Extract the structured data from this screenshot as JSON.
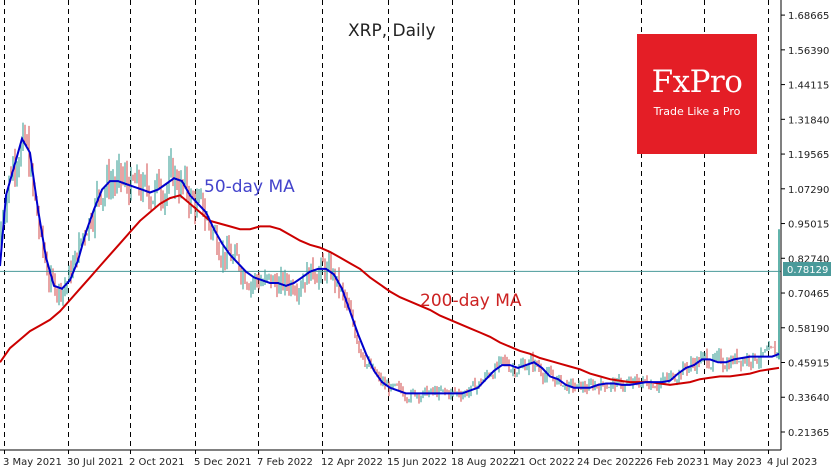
{
  "chart_data": {
    "type": "line",
    "title": "XRP, Daily",
    "x_tick_labels": [
      "3 May 2021",
      "30 Jul 2021",
      "2 Oct 2021",
      "5 Dec 2021",
      "7 Feb 2022",
      "12 Apr 2022",
      "15 Jun 2022",
      "18 Aug 2022",
      "21 Oct 2022",
      "24 Dec 2022",
      "26 Feb 2023",
      "1 May 2023",
      "4 Jul 2023"
    ],
    "y_ticks": [
      0.21365,
      0.3364,
      0.45915,
      0.5819,
      0.70465,
      0.8274,
      0.95015,
      1.0729,
      1.19565,
      1.3184,
      1.44115,
      1.5639,
      1.68665
    ],
    "y_tick_labels": [
      "0.21365",
      "0.33640",
      "0.45915",
      "0.58190",
      "0.70465",
      "0.82740",
      "0.95015",
      "1.07290",
      "1.19565",
      "1.31840",
      "1.44115",
      "1.56390",
      "1.68665"
    ],
    "ylim": [
      0.15,
      1.74
    ],
    "current_price": 0.78129,
    "current_price_label": "0.78129",
    "grid": "vertical dashed",
    "series": [
      {
        "name": "50-day MA",
        "color": "#0000cc",
        "points": [
          [
            0,
            0.8
          ],
          [
            6,
            1.05
          ],
          [
            14,
            1.15
          ],
          [
            22,
            1.25
          ],
          [
            30,
            1.2
          ],
          [
            38,
            1.0
          ],
          [
            46,
            0.83
          ],
          [
            54,
            0.73
          ],
          [
            62,
            0.72
          ],
          [
            70,
            0.75
          ],
          [
            78,
            0.82
          ],
          [
            86,
            0.92
          ],
          [
            94,
            1.0
          ],
          [
            102,
            1.07
          ],
          [
            110,
            1.1
          ],
          [
            118,
            1.1
          ],
          [
            126,
            1.09
          ],
          [
            134,
            1.08
          ],
          [
            142,
            1.07
          ],
          [
            150,
            1.06
          ],
          [
            158,
            1.07
          ],
          [
            166,
            1.09
          ],
          [
            174,
            1.11
          ],
          [
            182,
            1.1
          ],
          [
            190,
            1.05
          ],
          [
            198,
            1.02
          ],
          [
            206,
            0.99
          ],
          [
            214,
            0.93
          ],
          [
            222,
            0.88
          ],
          [
            230,
            0.84
          ],
          [
            238,
            0.81
          ],
          [
            246,
            0.78
          ],
          [
            254,
            0.76
          ],
          [
            262,
            0.75
          ],
          [
            270,
            0.74
          ],
          [
            278,
            0.74
          ],
          [
            286,
            0.73
          ],
          [
            294,
            0.74
          ],
          [
            302,
            0.76
          ],
          [
            310,
            0.78
          ],
          [
            318,
            0.79
          ],
          [
            326,
            0.79
          ],
          [
            334,
            0.77
          ],
          [
            342,
            0.72
          ],
          [
            350,
            0.64
          ],
          [
            358,
            0.56
          ],
          [
            366,
            0.49
          ],
          [
            374,
            0.43
          ],
          [
            382,
            0.39
          ],
          [
            390,
            0.37
          ],
          [
            398,
            0.36
          ],
          [
            406,
            0.35
          ],
          [
            414,
            0.35
          ],
          [
            422,
            0.35
          ],
          [
            430,
            0.35
          ],
          [
            438,
            0.35
          ],
          [
            446,
            0.35
          ],
          [
            454,
            0.35
          ],
          [
            462,
            0.35
          ],
          [
            470,
            0.36
          ],
          [
            478,
            0.37
          ],
          [
            486,
            0.4
          ],
          [
            494,
            0.43
          ],
          [
            502,
            0.45
          ],
          [
            510,
            0.45
          ],
          [
            518,
            0.44
          ],
          [
            526,
            0.45
          ],
          [
            534,
            0.46
          ],
          [
            542,
            0.44
          ],
          [
            550,
            0.41
          ],
          [
            558,
            0.4
          ],
          [
            566,
            0.38
          ],
          [
            574,
            0.37
          ],
          [
            582,
            0.37
          ],
          [
            590,
            0.37
          ],
          [
            598,
            0.38
          ],
          [
            606,
            0.385
          ],
          [
            614,
            0.385
          ],
          [
            622,
            0.38
          ],
          [
            630,
            0.38
          ],
          [
            638,
            0.385
          ],
          [
            646,
            0.39
          ],
          [
            654,
            0.39
          ],
          [
            662,
            0.39
          ],
          [
            670,
            0.395
          ],
          [
            678,
            0.42
          ],
          [
            686,
            0.44
          ],
          [
            694,
            0.45
          ],
          [
            702,
            0.47
          ],
          [
            710,
            0.47
          ],
          [
            718,
            0.46
          ],
          [
            726,
            0.46
          ],
          [
            734,
            0.47
          ],
          [
            742,
            0.475
          ],
          [
            750,
            0.48
          ],
          [
            758,
            0.48
          ],
          [
            766,
            0.48
          ],
          [
            772,
            0.48
          ],
          [
            776,
            0.485
          ],
          [
            779,
            0.49
          ]
        ]
      },
      {
        "name": "200-day MA",
        "color": "#cc0000",
        "points": [
          [
            0,
            0.46
          ],
          [
            10,
            0.51
          ],
          [
            20,
            0.54
          ],
          [
            30,
            0.57
          ],
          [
            40,
            0.59
          ],
          [
            50,
            0.61
          ],
          [
            60,
            0.64
          ],
          [
            70,
            0.68
          ],
          [
            80,
            0.72
          ],
          [
            90,
            0.76
          ],
          [
            100,
            0.8
          ],
          [
            110,
            0.84
          ],
          [
            120,
            0.88
          ],
          [
            130,
            0.92
          ],
          [
            140,
            0.96
          ],
          [
            150,
            0.99
          ],
          [
            160,
            1.02
          ],
          [
            170,
            1.04
          ],
          [
            180,
            1.05
          ],
          [
            190,
            1.02
          ],
          [
            200,
            0.99
          ],
          [
            210,
            0.96
          ],
          [
            220,
            0.95
          ],
          [
            230,
            0.94
          ],
          [
            240,
            0.93
          ],
          [
            250,
            0.93
          ],
          [
            260,
            0.94
          ],
          [
            270,
            0.94
          ],
          [
            280,
            0.93
          ],
          [
            290,
            0.91
          ],
          [
            300,
            0.89
          ],
          [
            310,
            0.875
          ],
          [
            320,
            0.865
          ],
          [
            330,
            0.85
          ],
          [
            340,
            0.83
          ],
          [
            350,
            0.81
          ],
          [
            360,
            0.79
          ],
          [
            370,
            0.76
          ],
          [
            380,
            0.735
          ],
          [
            390,
            0.71
          ],
          [
            400,
            0.69
          ],
          [
            410,
            0.675
          ],
          [
            420,
            0.66
          ],
          [
            430,
            0.645
          ],
          [
            440,
            0.625
          ],
          [
            450,
            0.61
          ],
          [
            460,
            0.595
          ],
          [
            470,
            0.58
          ],
          [
            480,
            0.565
          ],
          [
            490,
            0.55
          ],
          [
            500,
            0.53
          ],
          [
            510,
            0.515
          ],
          [
            520,
            0.5
          ],
          [
            530,
            0.49
          ],
          [
            540,
            0.475
          ],
          [
            550,
            0.465
          ],
          [
            560,
            0.455
          ],
          [
            570,
            0.445
          ],
          [
            580,
            0.435
          ],
          [
            590,
            0.42
          ],
          [
            600,
            0.41
          ],
          [
            610,
            0.4
          ],
          [
            620,
            0.395
          ],
          [
            630,
            0.39
          ],
          [
            640,
            0.39
          ],
          [
            650,
            0.39
          ],
          [
            660,
            0.385
          ],
          [
            670,
            0.38
          ],
          [
            680,
            0.385
          ],
          [
            690,
            0.39
          ],
          [
            700,
            0.4
          ],
          [
            710,
            0.405
          ],
          [
            720,
            0.41
          ],
          [
            730,
            0.41
          ],
          [
            740,
            0.415
          ],
          [
            750,
            0.42
          ],
          [
            760,
            0.43
          ],
          [
            770,
            0.435
          ],
          [
            779,
            0.44
          ]
        ]
      }
    ],
    "annotations": [
      {
        "text": "50-day MA",
        "color": "#4444cc"
      },
      {
        "text": "200-day MA",
        "color": "#cc2222"
      }
    ],
    "price_seed": 7
  },
  "logo": {
    "brand": "FxPro",
    "tagline": "Trade Like a Pro"
  }
}
